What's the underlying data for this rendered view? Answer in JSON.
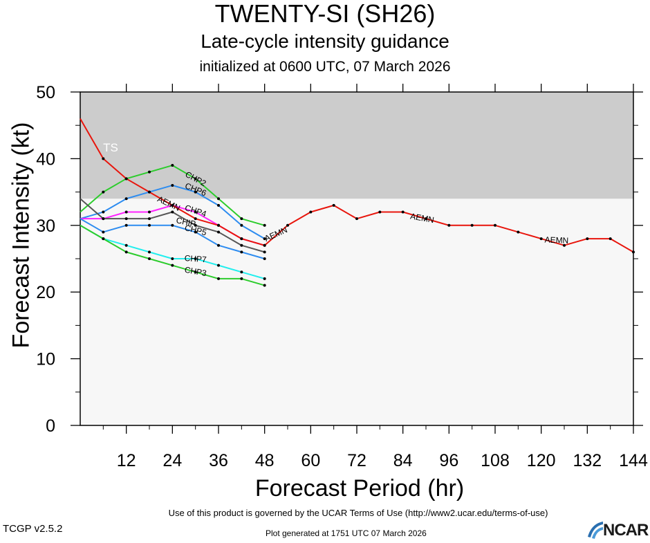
{
  "header": {
    "title": "TWENTY-SI (SH26)",
    "subtitle": "Late-cycle intensity guidance",
    "init": "initialized at 0600 UTC, 07 March 2026"
  },
  "footer": {
    "terms": "Use of this product is governed by the UCAR Terms of Use (http://www2.ucar.edu/terms-of-use)",
    "version": "TCGP v2.5.2",
    "generated": "Plot generated at 1751 UTC   07 March 2026",
    "logo": "NCAR"
  },
  "colors": {
    "ts_band": "#cccccc",
    "plot_bg": "#f7f7f7",
    "AEMN": "#e8150c",
    "CHP2": "#2ccc2c",
    "CHP6": "#2d8cf0",
    "CHP4": "#ff22ff",
    "CHIP": "#555555",
    "CHP5": "#2d8cf0",
    "CHP7": "#22eeee",
    "CHP3": "#2ccc2c"
  },
  "chart_data": {
    "type": "line",
    "title": "TWENTY-SI (SH26)",
    "xlabel": "Forecast Period (hr)",
    "ylabel": "Forecast Intensity (kt)",
    "xlim": [
      0,
      144
    ],
    "ylim": [
      0,
      50
    ],
    "xticks": [
      12,
      24,
      36,
      48,
      60,
      72,
      84,
      96,
      108,
      120,
      132,
      144
    ],
    "yticks": [
      0,
      10,
      20,
      30,
      40,
      50
    ],
    "bands": [
      {
        "label": "TS",
        "from": 34,
        "to": 50
      }
    ],
    "series": [
      {
        "name": "AEMN",
        "x": [
          0,
          6,
          12,
          18,
          24,
          30,
          36,
          42,
          48,
          54,
          60,
          66,
          72,
          78,
          84,
          90,
          96,
          102,
          108,
          114,
          120,
          126,
          132,
          138,
          144
        ],
        "values": [
          46,
          40,
          37,
          35,
          33,
          31,
          30,
          28,
          27,
          30,
          32,
          33,
          31,
          32,
          32,
          31,
          30,
          30,
          30,
          29,
          28,
          27,
          28,
          28,
          26
        ]
      },
      {
        "name": "CHP2",
        "x": [
          0,
          6,
          12,
          18,
          24,
          30,
          36,
          42,
          48
        ],
        "values": [
          32,
          35,
          37,
          38,
          39,
          37,
          34,
          31,
          30
        ]
      },
      {
        "name": "CHP6",
        "x": [
          0,
          6,
          12,
          18,
          24,
          30,
          36,
          42,
          48
        ],
        "values": [
          31,
          32,
          34,
          35,
          36,
          35,
          33,
          30,
          28
        ]
      },
      {
        "name": "CHP4",
        "x": [
          0,
          6,
          12,
          18,
          24,
          30,
          36,
          42,
          48
        ],
        "values": [
          31,
          31,
          32,
          32,
          33,
          32,
          30,
          28,
          27
        ]
      },
      {
        "name": "CHIP",
        "x": [
          0,
          6,
          12,
          18,
          24,
          30,
          36,
          42,
          48
        ],
        "values": [
          34,
          31,
          31,
          31,
          32,
          30,
          29,
          27,
          26
        ]
      },
      {
        "name": "CHP5",
        "x": [
          0,
          6,
          12,
          18,
          24,
          30,
          36,
          42,
          48
        ],
        "values": [
          31,
          29,
          30,
          30,
          30,
          29,
          27,
          26,
          25
        ]
      },
      {
        "name": "CHP7",
        "x": [
          0,
          6,
          12,
          18,
          24,
          30,
          36,
          42,
          48
        ],
        "values": [
          30,
          28,
          27,
          26,
          25,
          25,
          24,
          23,
          22
        ]
      },
      {
        "name": "CHP3",
        "x": [
          0,
          6,
          12,
          18,
          24,
          30,
          36,
          42,
          48
        ],
        "values": [
          30,
          28,
          26,
          25,
          24,
          23,
          22,
          22,
          21
        ]
      }
    ]
  }
}
